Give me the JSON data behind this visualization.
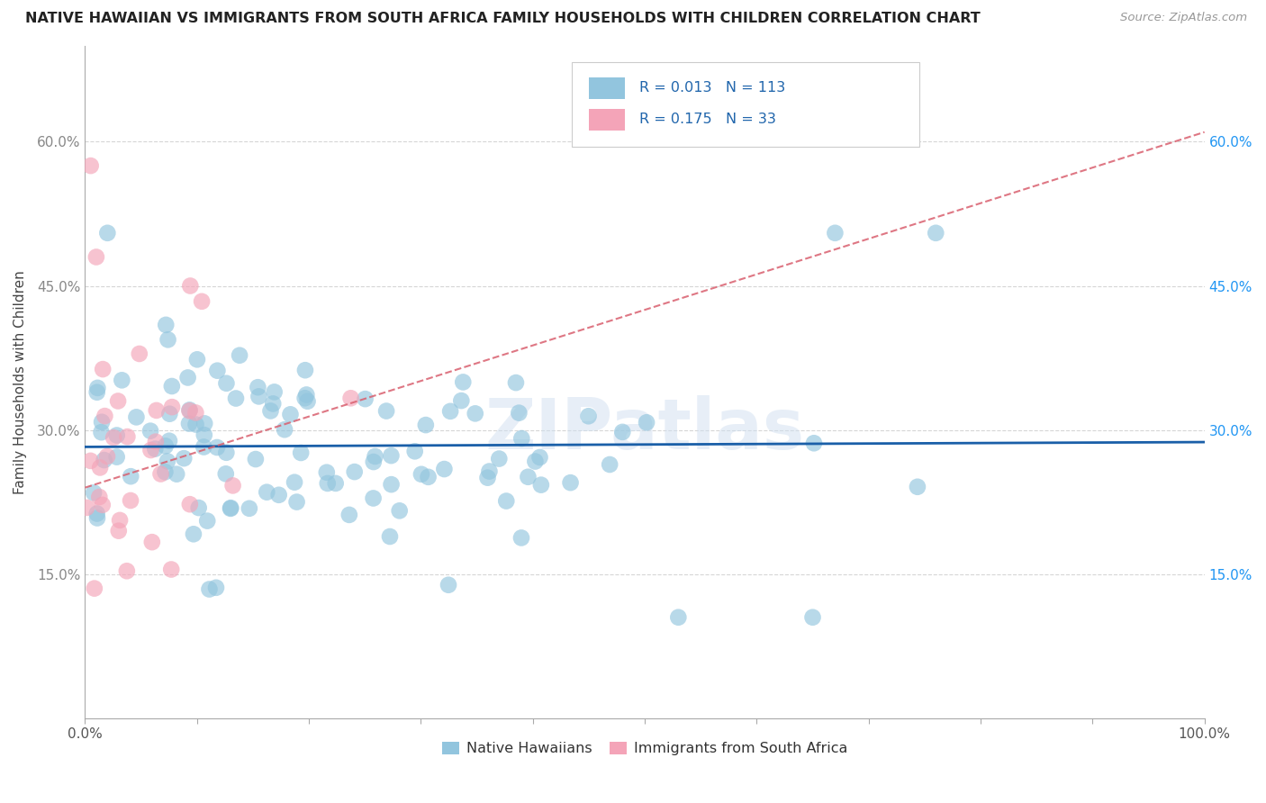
{
  "title": "NATIVE HAWAIIAN VS IMMIGRANTS FROM SOUTH AFRICA FAMILY HOUSEHOLDS WITH CHILDREN CORRELATION CHART",
  "source": "Source: ZipAtlas.com",
  "ylabel": "Family Households with Children",
  "xlim": [
    0,
    1.0
  ],
  "ylim": [
    0,
    0.7
  ],
  "y_ticks": [
    0.15,
    0.3,
    0.45,
    0.6
  ],
  "y_tick_labels": [
    "15.0%",
    "30.0%",
    "45.0%",
    "60.0%"
  ],
  "blue_color": "#92c5de",
  "pink_color": "#f4a4b8",
  "blue_line_color": "#1a5fa8",
  "pink_line_color": "#d95f6e",
  "R_blue": 0.013,
  "N_blue": 113,
  "R_pink": 0.175,
  "N_pink": 33,
  "watermark": "ZIPatlas",
  "grid_color": "#cccccc",
  "label1": "Native Hawaiians",
  "label2": "Immigrants from South Africa"
}
